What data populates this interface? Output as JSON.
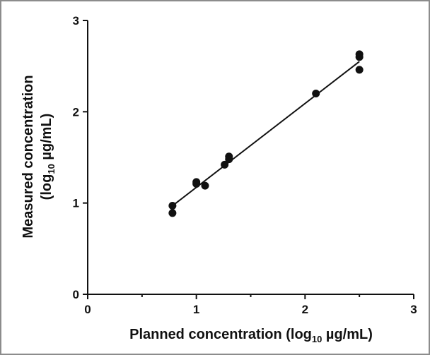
{
  "chart_data": {
    "type": "scatter",
    "xlabel": {
      "pre": "Planned concentration (log",
      "sub": "10",
      "post": " µg/mL)"
    },
    "ylabel": {
      "line1": "Measured concentration",
      "line2": {
        "pre": "(log",
        "sub": "10",
        "post": " µg/mL)"
      }
    },
    "xlim": [
      0,
      3
    ],
    "ylim": [
      0,
      3
    ],
    "x_ticks": [
      "0",
      "1",
      "2",
      "3"
    ],
    "y_ticks": [
      "0",
      "1",
      "2",
      "3"
    ],
    "grid": false,
    "series": [
      {
        "points": [
          {
            "x": 0.78,
            "y": 0.97
          },
          {
            "x": 0.78,
            "y": 0.89
          },
          {
            "x": 1.0,
            "y": 1.23
          },
          {
            "x": 1.0,
            "y": 1.21
          },
          {
            "x": 1.08,
            "y": 1.19
          },
          {
            "x": 1.26,
            "y": 1.42
          },
          {
            "x": 1.3,
            "y": 1.51
          },
          {
            "x": 1.3,
            "y": 1.48
          },
          {
            "x": 2.1,
            "y": 2.2
          },
          {
            "x": 2.5,
            "y": 2.63
          },
          {
            "x": 2.5,
            "y": 2.6
          },
          {
            "x": 2.5,
            "y": 2.46
          }
        ]
      }
    ],
    "fit_line": {
      "x1": 0.78,
      "y1": 0.97,
      "x2": 2.5,
      "y2": 2.55
    },
    "colors": {
      "marker": "#111111",
      "line": "#111111",
      "axis": "#111111",
      "frame": "#8c8c8c"
    }
  }
}
